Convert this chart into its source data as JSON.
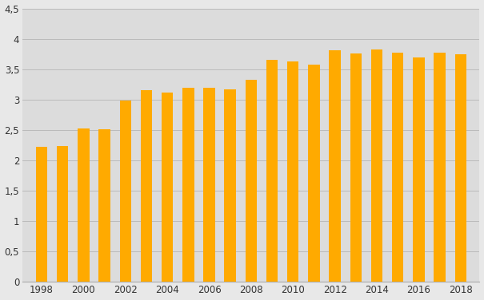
{
  "years": [
    1998,
    1999,
    2000,
    2001,
    2002,
    2003,
    2004,
    2005,
    2006,
    2007,
    2008,
    2009,
    2010,
    2011,
    2012,
    2013,
    2014,
    2015,
    2016,
    2017,
    2018
  ],
  "values": [
    2.22,
    2.24,
    2.53,
    2.51,
    2.98,
    3.16,
    3.11,
    3.2,
    3.2,
    3.17,
    3.33,
    3.66,
    3.63,
    3.57,
    3.81,
    3.76,
    3.83,
    3.77,
    3.69,
    3.77,
    3.74
  ],
  "bar_color": "#FFAA00",
  "background_color": "#E8E8E8",
  "plot_background": "#DCDCDC",
  "grid_color": "#BBBBBB",
  "ylim": [
    0,
    4.5
  ],
  "yticks": [
    0,
    0.5,
    1.0,
    1.5,
    2.0,
    2.5,
    3.0,
    3.5,
    4.0,
    4.5
  ],
  "ytick_labels": [
    "0",
    "0,5",
    "1",
    "1,5",
    "2",
    "2,5",
    "3",
    "3,5",
    "4",
    "4,5"
  ],
  "xtick_years": [
    1998,
    2000,
    2002,
    2004,
    2006,
    2008,
    2010,
    2012,
    2014,
    2016,
    2018
  ],
  "xtick_labels": [
    "1998",
    "2000",
    "2002",
    "2004",
    "2006",
    "2008",
    "2010",
    "2012",
    "2014",
    "2016",
    "2018"
  ],
  "bar_width": 0.55,
  "xlim_left": 1997.1,
  "xlim_right": 2018.9
}
